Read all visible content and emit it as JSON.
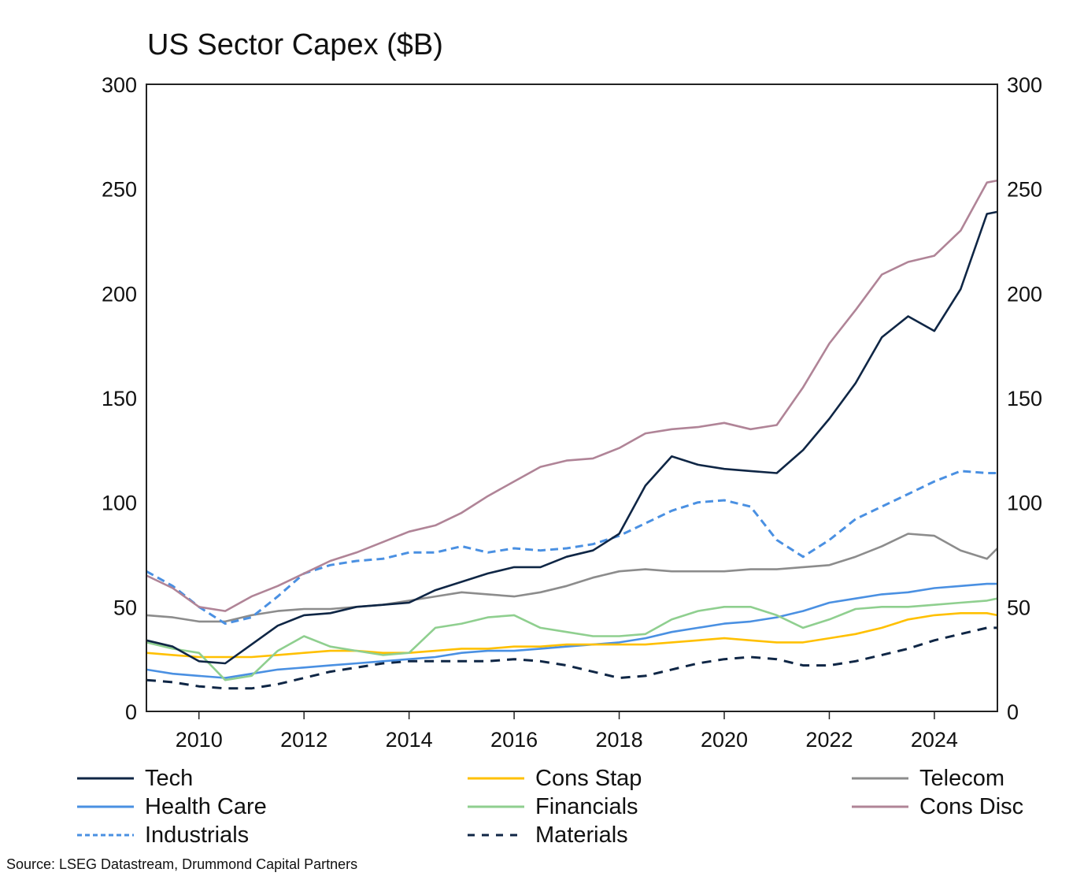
{
  "chart_data": {
    "type": "line",
    "title": "US Sector Capex ($B)",
    "xlabel": "",
    "ylabel": "",
    "xlim": [
      2009.0,
      2025.2
    ],
    "ylim": [
      0,
      300
    ],
    "y_ticks": [
      0,
      50,
      100,
      150,
      200,
      250,
      300
    ],
    "x_ticks": [
      2010,
      2012,
      2014,
      2016,
      2018,
      2020,
      2022,
      2024
    ],
    "x_tick_labels": [
      "2010",
      "2012",
      "2014",
      "2016",
      "2018",
      "2020",
      "2022",
      "2024"
    ],
    "y_tick_labels": [
      "0",
      "50",
      "100",
      "150",
      "200",
      "250",
      "300"
    ],
    "secondary_y_axis": true,
    "grid": false,
    "legend_position": "bottom",
    "x": [
      2009.0,
      2009.5,
      2010.0,
      2010.5,
      2011.0,
      2011.5,
      2012.0,
      2012.5,
      2013.0,
      2013.5,
      2014.0,
      2014.5,
      2015.0,
      2015.5,
      2016.0,
      2016.5,
      2017.0,
      2017.5,
      2018.0,
      2018.5,
      2019.0,
      2019.5,
      2020.0,
      2020.5,
      2021.0,
      2021.5,
      2022.0,
      2022.5,
      2023.0,
      2023.5,
      2024.0,
      2024.5,
      2025.0,
      2025.2
    ],
    "series": [
      {
        "name": "Tech",
        "color": "#0f2645",
        "dash": "solid",
        "values": [
          34,
          31,
          24,
          23,
          32,
          41,
          46,
          47,
          50,
          51,
          52,
          58,
          62,
          66,
          69,
          69,
          74,
          77,
          85,
          108,
          122,
          118,
          116,
          115,
          114,
          125,
          140,
          157,
          179,
          189,
          182,
          202,
          238,
          239
        ]
      },
      {
        "name": "Health Care",
        "color": "#4a90e2",
        "dash": "solid",
        "values": [
          20,
          18,
          17,
          16,
          18,
          20,
          21,
          22,
          23,
          24,
          25,
          26,
          28,
          29,
          29,
          30,
          31,
          32,
          33,
          35,
          38,
          40,
          42,
          43,
          45,
          48,
          52,
          54,
          56,
          57,
          59,
          60,
          61,
          61
        ]
      },
      {
        "name": "Industrials",
        "color": "#4a90e2",
        "dash": "dashed",
        "values": [
          67,
          60,
          50,
          42,
          45,
          55,
          66,
          70,
          72,
          73,
          76,
          76,
          79,
          76,
          78,
          77,
          78,
          80,
          84,
          90,
          96,
          100,
          101,
          98,
          82,
          74,
          82,
          92,
          98,
          104,
          110,
          115,
          114,
          114
        ]
      },
      {
        "name": "Cons Stap",
        "color": "#ffc000",
        "dash": "solid",
        "values": [
          28,
          27,
          26,
          26,
          26,
          27,
          28,
          29,
          29,
          28,
          28,
          29,
          30,
          30,
          31,
          31,
          32,
          32,
          32,
          32,
          33,
          34,
          35,
          34,
          33,
          33,
          35,
          37,
          40,
          44,
          46,
          47,
          47,
          46
        ]
      },
      {
        "name": "Financials",
        "color": "#8fcf8f",
        "dash": "solid",
        "values": [
          33,
          30,
          28,
          15,
          17,
          29,
          36,
          31,
          29,
          27,
          28,
          40,
          42,
          45,
          46,
          40,
          38,
          36,
          36,
          37,
          44,
          48,
          50,
          50,
          46,
          40,
          44,
          49,
          50,
          50,
          51,
          52,
          53,
          54
        ]
      },
      {
        "name": "Materials",
        "color": "#0f2645",
        "dash": "dashed",
        "values": [
          15,
          14,
          12,
          11,
          11,
          13,
          16,
          19,
          21,
          23,
          24,
          24,
          24,
          24,
          25,
          24,
          22,
          19,
          16,
          17,
          20,
          23,
          25,
          26,
          25,
          22,
          22,
          24,
          27,
          30,
          34,
          37,
          40,
          40
        ]
      },
      {
        "name": "Telecom",
        "color": "#8c8c8c",
        "dash": "solid",
        "values": [
          46,
          45,
          43,
          43,
          46,
          48,
          49,
          49,
          50,
          51,
          53,
          55,
          57,
          56,
          55,
          57,
          60,
          64,
          67,
          68,
          67,
          67,
          67,
          68,
          68,
          69,
          70,
          74,
          79,
          85,
          84,
          77,
          73,
          78
        ]
      },
      {
        "name": "Cons Disc",
        "color": "#b08497",
        "dash": "solid",
        "values": [
          65,
          59,
          50,
          48,
          55,
          60,
          66,
          72,
          76,
          81,
          86,
          89,
          95,
          103,
          110,
          117,
          120,
          121,
          126,
          133,
          135,
          136,
          138,
          135,
          137,
          155,
          176,
          192,
          209,
          215,
          218,
          230,
          253,
          254
        ]
      }
    ]
  },
  "legend": {
    "items": [
      {
        "label": "Tech",
        "color": "#0f2645",
        "dash": "solid"
      },
      {
        "label": "Cons Stap",
        "color": "#ffc000",
        "dash": "solid"
      },
      {
        "label": "Telecom",
        "color": "#8c8c8c",
        "dash": "solid"
      },
      {
        "label": "Health Care",
        "color": "#4a90e2",
        "dash": "solid"
      },
      {
        "label": "Financials",
        "color": "#8fcf8f",
        "dash": "solid"
      },
      {
        "label": "Cons Disc",
        "color": "#b08497",
        "dash": "solid"
      },
      {
        "label": "Industrials",
        "color": "#4a90e2",
        "dash": "dashed"
      },
      {
        "label": "Materials",
        "color": "#0f2645",
        "dash": "dashed"
      }
    ]
  },
  "source": "Source: LSEG Datastream, Drummond Capital Partners"
}
